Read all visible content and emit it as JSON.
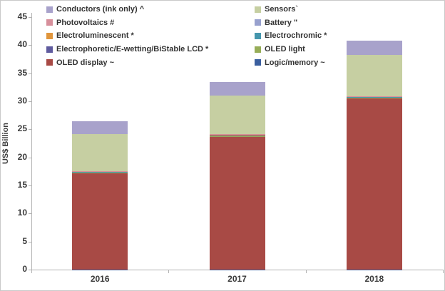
{
  "figure": {
    "background": "#ffffff",
    "border_color": "#c9c9c9",
    "axis_color": "#b3b3b3",
    "text_color": "#3a3a3a"
  },
  "chart_data": {
    "type": "bar",
    "stacked": true,
    "title": "",
    "xlabel": "",
    "ylabel": "US$ Billion",
    "ylim": [
      0,
      45
    ],
    "ytick_step": 5,
    "ytick_labels": [
      "0",
      "5",
      "10",
      "15",
      "20",
      "25",
      "30",
      "35",
      "40",
      "45"
    ],
    "grid": false,
    "legend_position": "top, two columns",
    "categories": [
      "2016",
      "2017",
      "2018"
    ],
    "series": [
      {
        "name": "Logic/memory ~",
        "color": "#3b5f9f",
        "values": [
          0.02,
          0.02,
          0.02
        ]
      },
      {
        "name": "OLED display ~",
        "color": "#a84a45",
        "values": [
          17.2,
          23.7,
          30.5
        ]
      },
      {
        "name": "OLED light",
        "color": "#97ad58",
        "values": [
          0.08,
          0.1,
          0.1
        ]
      },
      {
        "name": "Electrophoretic/E-wetting/BiStable LCD *",
        "color": "#5f5b9e",
        "values": [
          0.12,
          0.15,
          0.15
        ]
      },
      {
        "name": "Electrochromic *",
        "color": "#4596ad",
        "values": [
          0.03,
          0.03,
          0.03
        ]
      },
      {
        "name": "Electroluminescent *",
        "color": "#e0953c",
        "values": [
          0.05,
          0.05,
          0.05
        ]
      },
      {
        "name": "Battery \"",
        "color": "#98a1ce",
        "values": [
          0.05,
          0.05,
          0.05
        ]
      },
      {
        "name": "Photovoltaics #",
        "color": "#d78f9b",
        "values": [
          0.05,
          0.05,
          0.05
        ]
      },
      {
        "name": "Sensors`",
        "color": "#c6cfa2",
        "values": [
          6.5,
          6.9,
          7.3
        ]
      },
      {
        "name": "Conductors (ink only) ^",
        "color": "#a8a2cb",
        "values": [
          2.4,
          2.4,
          2.5
        ]
      }
    ],
    "stack_order": "bottom to top as listed in series",
    "totals": [
      26.5,
      33.45,
      40.75
    ],
    "legend_columns": [
      [
        "Conductors (ink only) ^",
        "Photovoltaics #",
        "Electroluminescent *",
        "Electrophoretic/E-wetting/BiStable LCD *",
        "OLED display ~"
      ],
      [
        "Sensors`",
        "Battery \"",
        "Electrochromic *",
        "OLED light",
        "Logic/memory ~"
      ]
    ]
  }
}
